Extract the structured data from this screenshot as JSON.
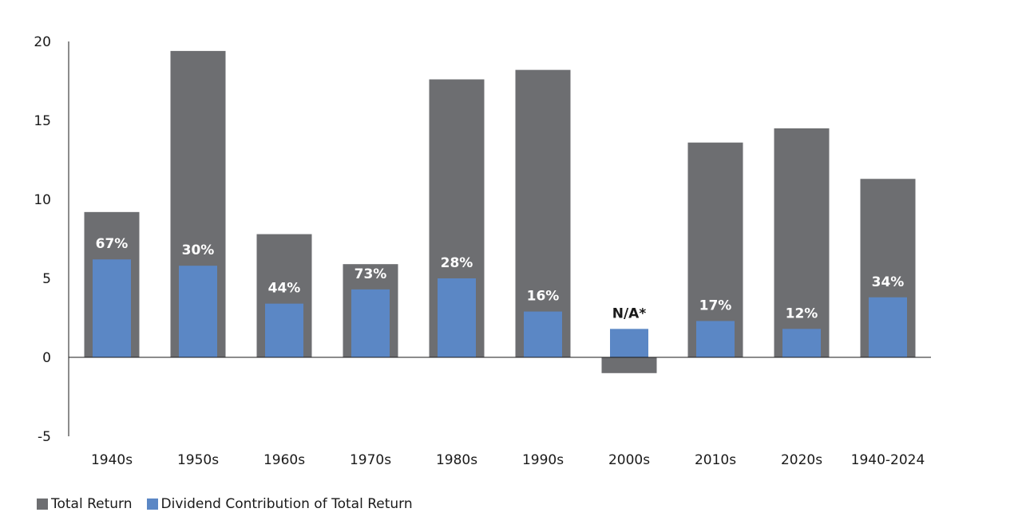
{
  "chart_data": {
    "type": "bar",
    "categories": [
      "1940s",
      "1950s",
      "1960s",
      "1970s",
      "1980s",
      "1990s",
      "2000s",
      "2010s",
      "2020s",
      "1940-2024"
    ],
    "series": [
      {
        "name": "Total Return",
        "color": "#6d6e71",
        "values": [
          9.2,
          19.4,
          7.8,
          5.9,
          17.6,
          18.2,
          -1.0,
          13.6,
          14.5,
          11.3
        ]
      },
      {
        "name": "Dividend Contribution of Total Return",
        "color": "#5b87c5",
        "values": [
          6.2,
          5.8,
          3.4,
          4.3,
          5.0,
          2.9,
          1.8,
          2.3,
          1.8,
          3.8
        ]
      }
    ],
    "data_labels": [
      "67%",
      "30%",
      "44%",
      "73%",
      "28%",
      "16%",
      "N/A*",
      "17%",
      "12%",
      "34%"
    ],
    "ylim": [
      -5,
      20
    ],
    "yticks": [
      -5,
      0,
      5,
      10,
      15,
      20
    ],
    "xlabel": "",
    "ylabel": "",
    "title": "",
    "legend_position": "bottom-left",
    "grid": false
  }
}
